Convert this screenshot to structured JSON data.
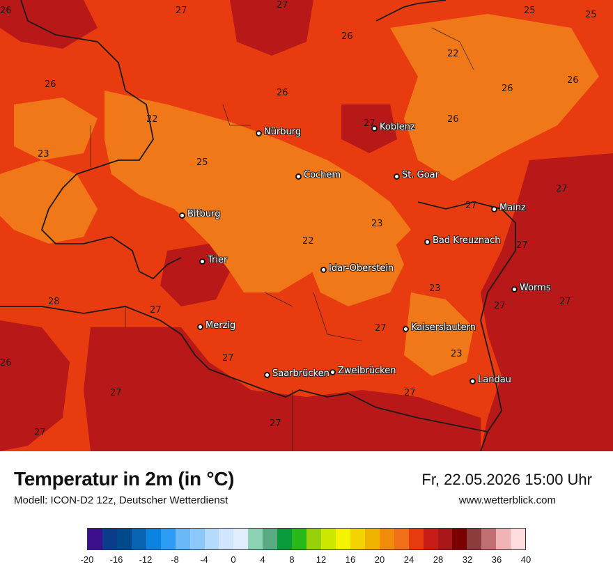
{
  "map": {
    "cities": [
      {
        "name": "Nürburg",
        "id": "city-nuerburg"
      },
      {
        "name": "Koblenz",
        "id": "city-koblenz"
      },
      {
        "name": "Cochem",
        "id": "city-cochem"
      },
      {
        "name": "St. Goar",
        "id": "city-st-goar"
      },
      {
        "name": "Mainz",
        "id": "city-mainz"
      },
      {
        "name": "Bitburg",
        "id": "city-bitburg"
      },
      {
        "name": "Bad Kreuznach",
        "id": "city-bad-kreuznach"
      },
      {
        "name": "Trier",
        "id": "city-trier"
      },
      {
        "name": "Idar-Oberstein",
        "id": "city-idar-oberstein"
      },
      {
        "name": "Worms",
        "id": "city-worms"
      },
      {
        "name": "Merzig",
        "id": "city-merzig"
      },
      {
        "name": "Kaiserslautern",
        "id": "city-kaiserslautern"
      },
      {
        "name": "Saarbrücken",
        "id": "city-saarbruecken"
      },
      {
        "name": "Zweibrücken",
        "id": "city-zweibruecken"
      },
      {
        "name": "Landau",
        "id": "city-landau"
      }
    ],
    "temperature_labels": [
      "26",
      "27",
      "27",
      "25",
      "25",
      "26",
      "26",
      "26",
      "22",
      "26",
      "26",
      "22",
      "23",
      "27",
      "26",
      "25",
      "27",
      "27",
      "23",
      "22",
      "27",
      "23",
      "28",
      "27",
      "27",
      "27",
      "27",
      "23",
      "26",
      "27",
      "27",
      "27",
      "27",
      "27"
    ],
    "colors": {
      "warm": "#e83c10",
      "mild": "#f07818",
      "hot": "#b81818",
      "border": "#1a1a1a"
    }
  },
  "footer": {
    "title": "Temperatur in 2m (in °C)",
    "model": "Modell: ICON-D2 12z, Deutscher Wetterdienst",
    "datetime": "Fr, 22.05.2026 15:00 Uhr",
    "website": "www.wetterblick.com"
  },
  "legend": {
    "colors": [
      "#3c0f8c",
      "#0a3c8c",
      "#004a8c",
      "#0a64b4",
      "#0a84e0",
      "#2c9cf4",
      "#6ab8f8",
      "#8ec8fa",
      "#b4dafc",
      "#d0e6fc",
      "#e0eefc",
      "#8cd2b4",
      "#5aaa82",
      "#0a9c3c",
      "#28b818",
      "#98d00a",
      "#cce800",
      "#f4f400",
      "#f4d400",
      "#f0b400",
      "#f08c0a",
      "#f07018",
      "#e83c10",
      "#c81c18",
      "#a81818",
      "#7c0000",
      "#8c3c3c",
      "#c07070",
      "#f0b4b4",
      "#fcdcdc"
    ],
    "ticks": [
      "-20",
      "-16",
      "-12",
      "-8",
      "-4",
      "0",
      "4",
      "8",
      "12",
      "16",
      "20",
      "24",
      "28",
      "32",
      "36",
      "40"
    ]
  }
}
